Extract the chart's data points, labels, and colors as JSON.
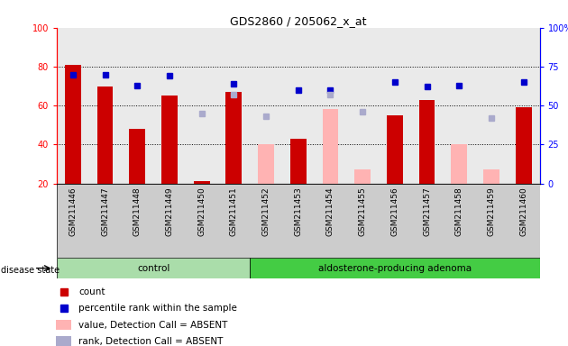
{
  "title": "GDS2860 / 205062_x_at",
  "samples": [
    "GSM211446",
    "GSM211447",
    "GSM211448",
    "GSM211449",
    "GSM211450",
    "GSM211451",
    "GSM211452",
    "GSM211453",
    "GSM211454",
    "GSM211455",
    "GSM211456",
    "GSM211457",
    "GSM211458",
    "GSM211459",
    "GSM211460"
  ],
  "count_values": [
    81,
    70,
    48,
    65,
    21,
    67,
    null,
    43,
    null,
    null,
    55,
    63,
    null,
    null,
    59
  ],
  "count_absent_values": [
    null,
    null,
    null,
    null,
    null,
    null,
    40,
    null,
    58,
    27,
    null,
    null,
    40,
    27,
    null
  ],
  "percentile_values": [
    70,
    70,
    63,
    69,
    null,
    64,
    null,
    60,
    60,
    null,
    65,
    62,
    63,
    null,
    65
  ],
  "rank_absent_values": [
    null,
    null,
    null,
    null,
    45,
    57,
    43,
    null,
    57,
    46,
    null,
    null,
    null,
    42,
    null
  ],
  "ylim_left": [
    20,
    100
  ],
  "ylim_right": [
    0,
    100
  ],
  "yticks_left": [
    20,
    40,
    60,
    80,
    100
  ],
  "ytick_labels_right": [
    "0",
    "25",
    "50",
    "75",
    "100%"
  ],
  "count_color": "#cc0000",
  "count_absent_color": "#ffb3b3",
  "percentile_color": "#0000cc",
  "rank_absent_color": "#aaaacc",
  "bg_color": "#cccccc",
  "control_bg": "#aaddaa",
  "adenoma_bg": "#44cc44",
  "ctrl_count": 6,
  "bar_width": 0.5
}
